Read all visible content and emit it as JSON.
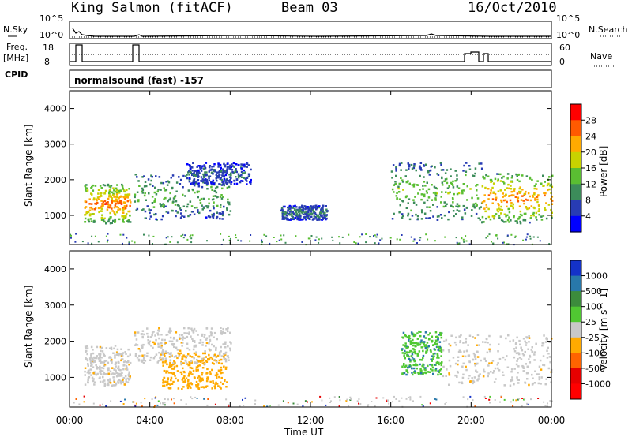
{
  "header": {
    "station": "King Salmon (fitACF)",
    "beam": "Beam 03",
    "date": "16/Oct/2010"
  },
  "top_panels": {
    "nsky_label": "N.Sky",
    "nsky_ticks": [
      "10^5",
      "10^0"
    ],
    "nsearch_label": "N.Search",
    "nsearch_ticks": [
      "10^5",
      "10^0"
    ],
    "freq_label_1": "Freq.",
    "freq_label_2": "[MHz]",
    "freq_ticks": [
      "18",
      "8"
    ],
    "nave_label": "Nave",
    "nave_ticks": [
      "60",
      "0"
    ],
    "cpid_label": "CPID",
    "cpid_text": "normalsound (fast) -157"
  },
  "x_axis": {
    "title": "Time UT",
    "tick_labels": [
      "00:00",
      "04:00",
      "08:00",
      "12:00",
      "16:00",
      "20:00",
      "00:00"
    ]
  },
  "power_colorbar": {
    "title": "Power [dB]",
    "tick_labels": [
      "28",
      "24",
      "20",
      "16",
      "12",
      "8",
      "4"
    ],
    "colors": [
      "#ff0000",
      "#ff5a00",
      "#ffaa00",
      "#c8d200",
      "#5abe32",
      "#3c8c5a",
      "#283cb4",
      "#0000ff"
    ]
  },
  "velocity_colorbar": {
    "title": "Velocity [m s^-1]",
    "tick_labels": [
      "1000",
      "500",
      "100",
      "25",
      "-25",
      "-100",
      "-500",
      "-1000"
    ],
    "colors": [
      "#1432c8",
      "#2878aa",
      "#3c8c3c",
      "#50c832",
      "#c8c8c8",
      "#ffaa00",
      "#ff6400",
      "#e60000",
      "#ff0000"
    ]
  },
  "chart_data": [
    {
      "type": "heatmap",
      "title": "",
      "xlabel": "Time UT",
      "ylabel": "Slant Range [km]",
      "xlim": [
        "00:00",
        "24:00"
      ],
      "ylim": [
        180,
        4500
      ],
      "y_ticks": [
        1000,
        2000,
        3000,
        4000
      ],
      "colorbar_label": "Power [dB]",
      "color_range": [
        0,
        30
      ],
      "scatter_regions": [
        {
          "t_start": 0.7,
          "t_end": 3.0,
          "r_low": 800,
          "r_high": 1900,
          "power": 26
        },
        {
          "t_start": 3.2,
          "t_end": 8.0,
          "r_low": 900,
          "r_high": 2200,
          "power": 12
        },
        {
          "t_start": 5.8,
          "t_end": 9.0,
          "r_low": 1900,
          "r_high": 2500,
          "power": 6
        },
        {
          "t_start": 10.5,
          "t_end": 12.8,
          "r_low": 900,
          "r_high": 1300,
          "power": 8
        },
        {
          "t_start": 16.0,
          "t_end": 20.5,
          "r_low": 900,
          "r_high": 2500,
          "power": 14
        },
        {
          "t_start": 20.5,
          "t_end": 24.0,
          "r_low": 800,
          "r_high": 2200,
          "power": 24
        }
      ]
    },
    {
      "type": "heatmap",
      "title": "",
      "xlabel": "Time UT",
      "ylabel": "Slant Range [km]",
      "xlim": [
        "00:00",
        "24:00"
      ],
      "ylim": [
        180,
        4500
      ],
      "y_ticks": [
        1000,
        2000,
        3000,
        4000
      ],
      "colorbar_label": "Velocity [m s^-1]",
      "color_range": [
        -1000,
        1000
      ],
      "scatter_regions": [
        {
          "t_start": 0.7,
          "t_end": 3.0,
          "r_low": 800,
          "r_high": 1900,
          "velocity": 0
        },
        {
          "t_start": 4.5,
          "t_end": 7.8,
          "r_low": 700,
          "r_high": 1700,
          "velocity": -120
        },
        {
          "t_start": 3.2,
          "t_end": 8.0,
          "r_low": 1400,
          "r_high": 2400,
          "velocity": 0
        },
        {
          "t_start": 16.5,
          "t_end": 18.5,
          "r_low": 1100,
          "r_high": 2300,
          "velocity": 80
        },
        {
          "t_start": 18.5,
          "t_end": 24.0,
          "r_low": 800,
          "r_high": 2200,
          "velocity": 0
        }
      ]
    }
  ]
}
